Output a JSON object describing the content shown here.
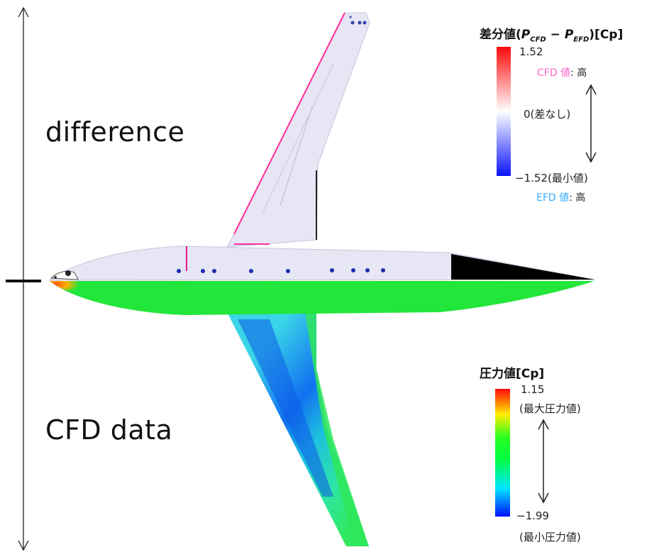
{
  "labels": {
    "top": "difference",
    "bottom": "CFD data"
  },
  "legend_difference": {
    "title_prefix": "差分値",
    "title_open": "(",
    "p_symbol_1": "P",
    "p_sub_1": "CFD",
    "minus": " − ",
    "p_symbol_2": "P",
    "p_sub_2": "EFD",
    "title_close": ")",
    "title_unit": "[Cp]",
    "max_value": "1.52",
    "high_label": "CFD 値",
    "high_suffix": ": 高",
    "zero_label": "0(差なし)",
    "min_value": "−1.52(最小値)",
    "low_label": "EFD 値",
    "low_suffix": ": 高",
    "colors": [
      "#0000ff",
      "#ffffff",
      "#ff0000"
    ],
    "high_label_color": "#ff66cc",
    "low_label_color": "#33aaff"
  },
  "legend_pressure": {
    "title": "圧力値[Cp]",
    "max_value": "1.15",
    "max_note": "(最大圧力値)",
    "min_value": "−1.99",
    "min_note": "(最小圧力値)",
    "colors": [
      "#0000ff",
      "#00ffff",
      "#00ff40",
      "#ffff00",
      "#ff0000"
    ]
  },
  "aircraft": {
    "upper_fill": "#e6e6f4",
    "lower_fill": "#22e63a",
    "tail_fill": "#000000"
  }
}
